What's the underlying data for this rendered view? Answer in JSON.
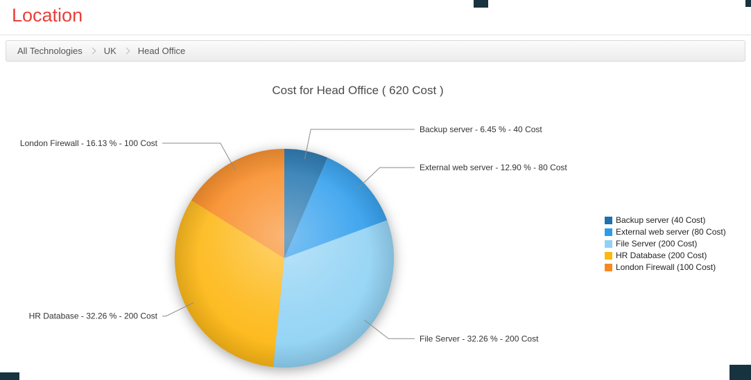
{
  "page": {
    "title": "Location",
    "accent_color": "#e8403a"
  },
  "breadcrumb": {
    "items": [
      "All Technologies",
      "UK",
      "Head Office"
    ]
  },
  "chart_data": {
    "type": "pie",
    "title": "Cost for Head Office ( 620 Cost )",
    "unit": "Cost",
    "total": 620,
    "legend_position": "right",
    "slices": [
      {
        "label": "Backup server",
        "value": 40,
        "percent": "6.45",
        "color": "#1d71ad",
        "callout": "Backup server - 6.45 % - 40 Cost",
        "legend": "Backup server (40 Cost)"
      },
      {
        "label": "External web server",
        "value": 80,
        "percent": "12.90",
        "color": "#2b9ced",
        "callout": "External web server - 12.90 % - 80 Cost",
        "legend": "External web server (80 Cost)"
      },
      {
        "label": "File Server",
        "value": 200,
        "percent": "32.26",
        "color": "#90d2f4",
        "callout": "File Server - 32.26 % - 200 Cost",
        "legend": "File Server (200 Cost)"
      },
      {
        "label": "HR Database",
        "value": 200,
        "percent": "32.26",
        "color": "#fdb713",
        "callout": "HR Database - 32.26 % - 200 Cost",
        "legend": "HR Database (200 Cost)"
      },
      {
        "label": "London Firewall",
        "value": 100,
        "percent": "16.13",
        "color": "#f8881f",
        "callout": "London Firewall - 16.13 % - 100 Cost",
        "legend": "London Firewall (100 Cost)"
      }
    ]
  }
}
